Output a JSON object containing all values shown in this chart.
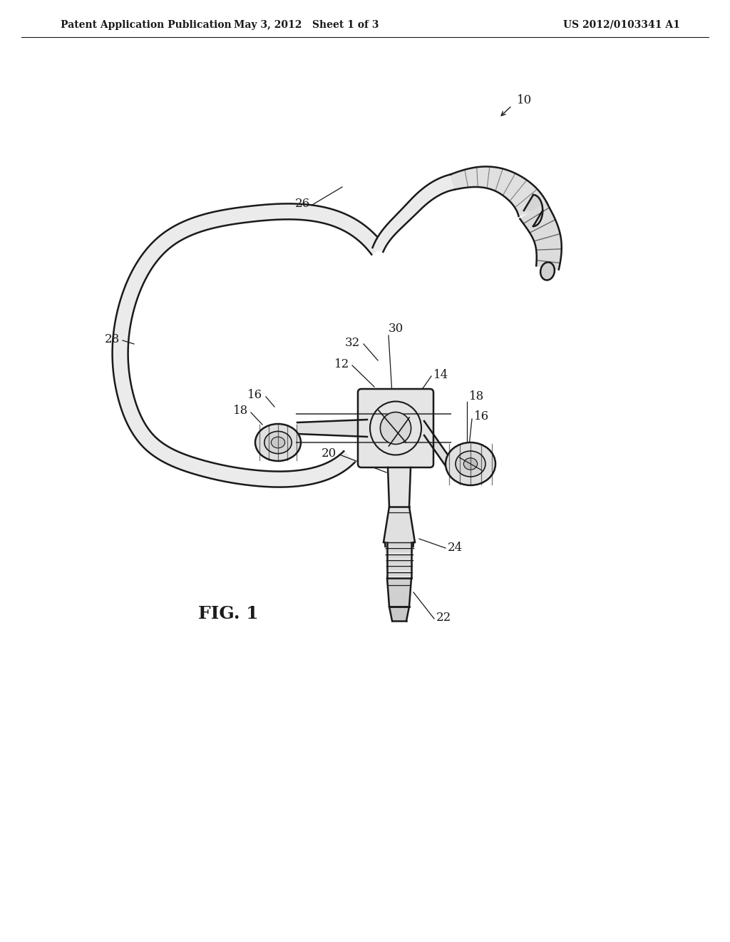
{
  "bg_color": "#ffffff",
  "line_color": "#1a1a1a",
  "header_left": "Patent Application Publication",
  "header_center": "May 3, 2012   Sheet 1 of 3",
  "header_right": "US 2012/0103341 A1",
  "fig_label": "FIG. 1",
  "title_fontsize": 11,
  "header_fontsize": 10,
  "label_fontsize": 12
}
